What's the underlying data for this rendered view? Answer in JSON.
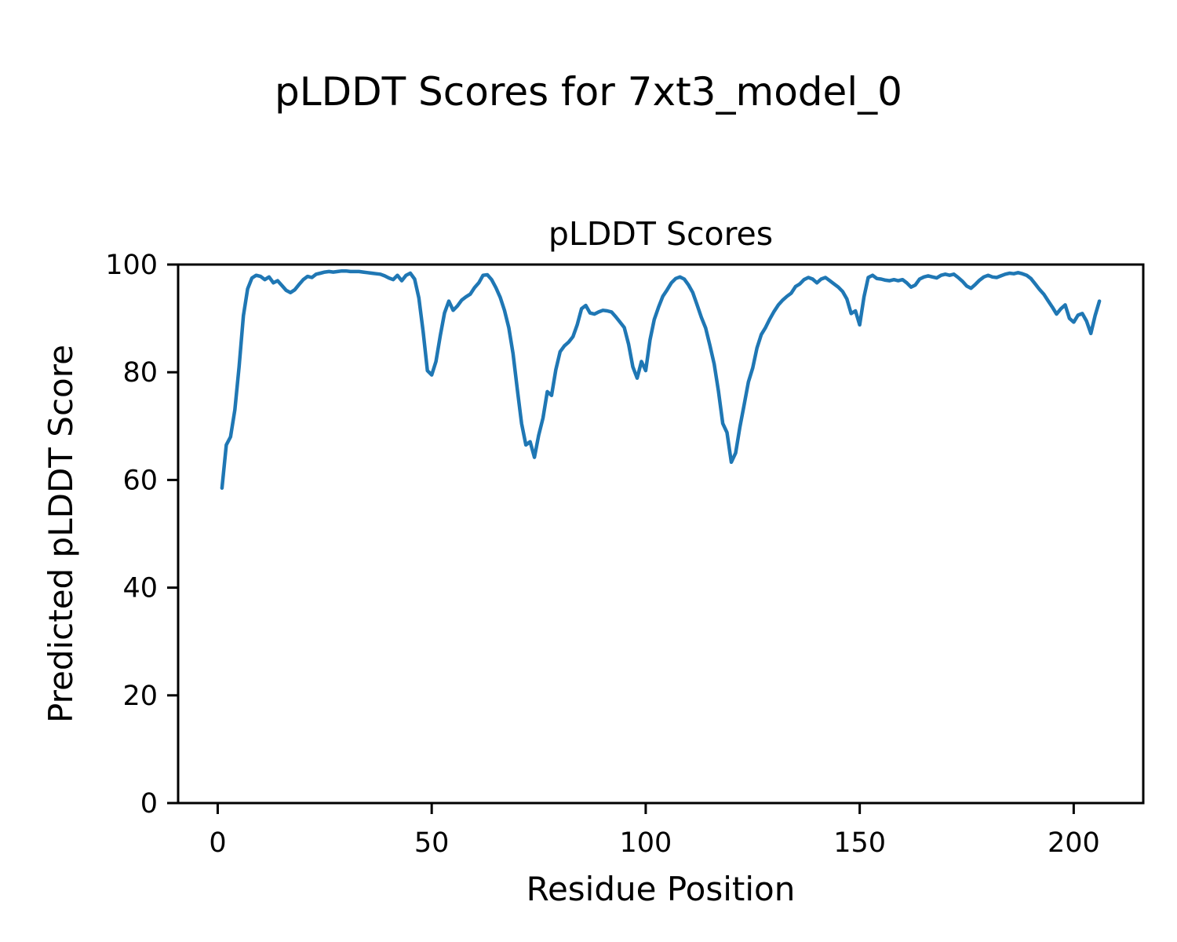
{
  "figure": {
    "background": "#ffffff"
  },
  "chart_data": {
    "type": "line",
    "suptitle": "pLDDT Scores for 7xt3_model_0",
    "title": "pLDDT Scores",
    "xlabel": "Residue Position",
    "ylabel": "Predicted pLDDT Score",
    "xlim": [
      -9.25,
      216.25
    ],
    "ylim": [
      0,
      100
    ],
    "xticks": [
      0,
      50,
      100,
      150,
      200
    ],
    "yticks": [
      0,
      20,
      40,
      60,
      80,
      100
    ],
    "grid": false,
    "legend": null,
    "line_color": "#1f77b4",
    "line_width": 4.5,
    "axis_color": "#000000",
    "series_name": "pLDDT",
    "x_start": 1,
    "x_step": 1,
    "values": [
      58.5,
      66.5,
      68,
      73,
      81,
      90.5,
      95.5,
      97.5,
      98,
      97.8,
      97.2,
      97.7,
      96.6,
      97,
      96.1,
      95.2,
      94.8,
      95.3,
      96.3,
      97.2,
      97.8,
      97.6,
      98.2,
      98.4,
      98.6,
      98.7,
      98.6,
      98.7,
      98.8,
      98.8,
      98.7,
      98.7,
      98.7,
      98.6,
      98.5,
      98.4,
      98.3,
      98.2,
      97.9,
      97.5,
      97.2,
      98,
      97,
      98,
      98.4,
      97.3,
      93.8,
      87.5,
      80.3,
      79.5,
      82,
      86.8,
      91,
      93.2,
      91.5,
      92.3,
      93.4,
      94,
      94.5,
      95.7,
      96.6,
      98,
      98.1,
      97.2,
      95.7,
      93.9,
      91.5,
      88.3,
      83.5,
      76.8,
      70.5,
      66.5,
      67.1,
      64.2,
      68.3,
      71.5,
      76.4,
      75.7,
      80.5,
      83.8,
      84.9,
      85.6,
      86.6,
      88.8,
      91.8,
      92.4,
      91,
      90.8,
      91.2,
      91.5,
      91.4,
      91.2,
      90.3,
      89.3,
      88.3,
      85.2,
      81,
      78.9,
      82,
      80.3,
      86,
      89.8,
      92.1,
      94.1,
      95.3,
      96.6,
      97.4,
      97.7,
      97.3,
      96.2,
      94.8,
      92.5,
      90.2,
      88.2,
      85,
      81.5,
      76.5,
      70.5,
      68.8,
      63.3,
      65,
      69.8,
      74,
      78.2,
      80.8,
      84.5,
      87,
      88.3,
      89.9,
      91.3,
      92.5,
      93.4,
      94.1,
      94.7,
      95.9,
      96.4,
      97.2,
      97.6,
      97.3,
      96.6,
      97.3,
      97.6,
      97,
      96.4,
      95.8,
      95,
      93.6,
      90.9,
      91.4,
      88.8,
      94,
      97.6,
      98,
      97.4,
      97.3,
      97.1,
      97,
      97.2,
      97,
      97.2,
      96.6,
      95.8,
      96.2,
      97.3,
      97.7,
      97.9,
      97.7,
      97.5,
      98,
      98.2,
      98,
      98.2,
      97.6,
      96.9,
      96,
      95.6,
      96.3,
      97.1,
      97.7,
      98,
      97.7,
      97.6,
      97.9,
      98.2,
      98.4,
      98.3,
      98.5,
      98.3,
      98,
      97.4,
      96.4,
      95.4,
      94.5,
      93.3,
      92.1,
      90.8,
      91.8,
      92.5,
      90,
      89.3,
      90.6,
      90.9,
      89.5,
      87.2,
      90.5,
      93.2
    ]
  }
}
